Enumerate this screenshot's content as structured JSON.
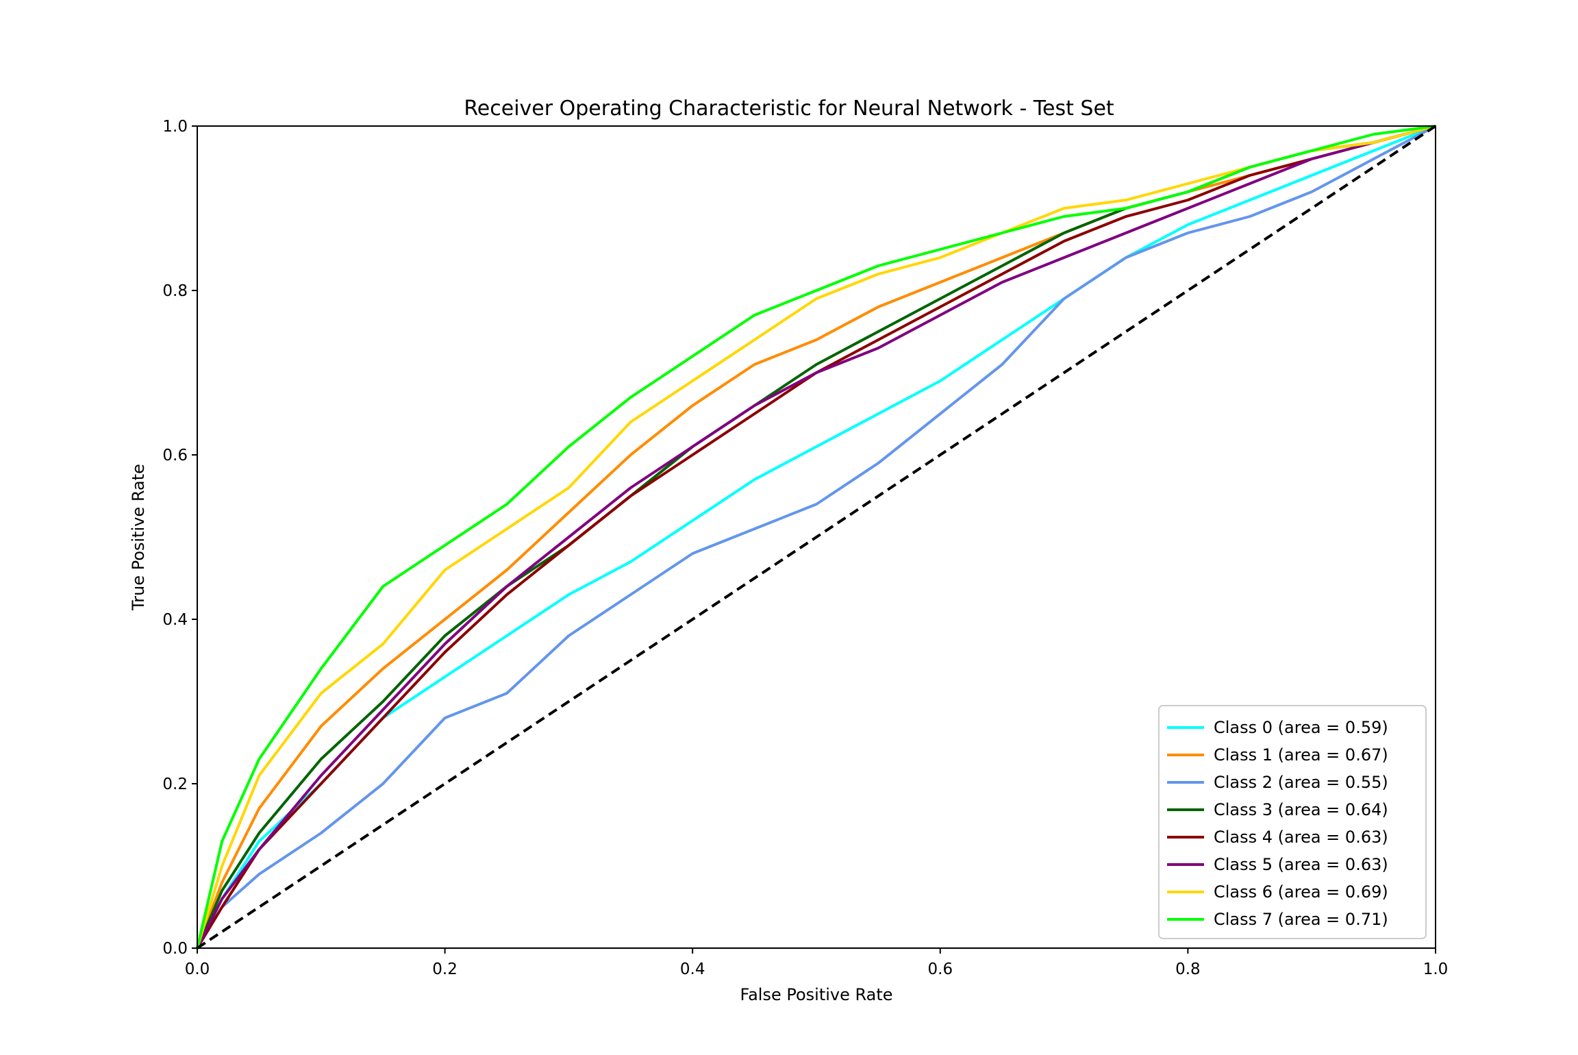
{
  "chart_data": {
    "type": "line",
    "title": "Receiver Operating Characteristic for Neural Network - Test Set",
    "xlabel": "False Positive Rate",
    "ylabel": "True Positive Rate",
    "xlim": [
      0.0,
      1.0
    ],
    "ylim": [
      0.0,
      1.0
    ],
    "xticks": [
      "0.0",
      "0.2",
      "0.4",
      "0.6",
      "0.8",
      "1.0"
    ],
    "yticks": [
      "0.0",
      "0.2",
      "0.4",
      "0.6",
      "0.8",
      "1.0"
    ],
    "grid": false,
    "legend_position": "lower-right",
    "series": [
      {
        "name": "Class 0 (area = 0.59)",
        "color": "#00ffff",
        "x": [
          0.0,
          0.02,
          0.05,
          0.1,
          0.15,
          0.2,
          0.25,
          0.3,
          0.35,
          0.4,
          0.45,
          0.5,
          0.55,
          0.6,
          0.65,
          0.7,
          0.75,
          0.8,
          0.85,
          0.9,
          0.95,
          1.0
        ],
        "y": [
          0.0,
          0.06,
          0.13,
          0.2,
          0.28,
          0.33,
          0.38,
          0.43,
          0.47,
          0.52,
          0.57,
          0.61,
          0.65,
          0.69,
          0.74,
          0.79,
          0.84,
          0.88,
          0.91,
          0.94,
          0.97,
          1.0
        ]
      },
      {
        "name": "Class 1 (area = 0.67)",
        "color": "#ff8c00",
        "x": [
          0.0,
          0.02,
          0.05,
          0.1,
          0.15,
          0.2,
          0.25,
          0.3,
          0.35,
          0.4,
          0.45,
          0.5,
          0.55,
          0.6,
          0.65,
          0.7,
          0.75,
          0.8,
          0.85,
          0.9,
          0.95,
          1.0
        ],
        "y": [
          0.0,
          0.08,
          0.17,
          0.27,
          0.34,
          0.4,
          0.46,
          0.53,
          0.6,
          0.66,
          0.71,
          0.74,
          0.78,
          0.81,
          0.84,
          0.87,
          0.9,
          0.92,
          0.94,
          0.96,
          0.98,
          1.0
        ]
      },
      {
        "name": "Class 2 (area = 0.55)",
        "color": "#6495ed",
        "x": [
          0.0,
          0.02,
          0.05,
          0.1,
          0.15,
          0.2,
          0.25,
          0.3,
          0.35,
          0.4,
          0.45,
          0.5,
          0.55,
          0.6,
          0.65,
          0.7,
          0.75,
          0.8,
          0.85,
          0.9,
          0.95,
          1.0
        ],
        "y": [
          0.0,
          0.05,
          0.09,
          0.14,
          0.2,
          0.28,
          0.31,
          0.38,
          0.43,
          0.48,
          0.51,
          0.54,
          0.59,
          0.65,
          0.71,
          0.79,
          0.84,
          0.87,
          0.89,
          0.92,
          0.96,
          1.0
        ]
      },
      {
        "name": "Class 3 (area = 0.64)",
        "color": "#006400",
        "x": [
          0.0,
          0.02,
          0.05,
          0.1,
          0.15,
          0.2,
          0.25,
          0.3,
          0.35,
          0.4,
          0.45,
          0.5,
          0.55,
          0.6,
          0.65,
          0.7,
          0.75,
          0.8,
          0.85,
          0.9,
          0.95,
          1.0
        ],
        "y": [
          0.0,
          0.07,
          0.14,
          0.23,
          0.3,
          0.38,
          0.44,
          0.49,
          0.55,
          0.61,
          0.66,
          0.71,
          0.75,
          0.79,
          0.83,
          0.87,
          0.9,
          0.92,
          0.95,
          0.97,
          0.98,
          1.0
        ]
      },
      {
        "name": "Class 4 (area = 0.63)",
        "color": "#8b0000",
        "x": [
          0.0,
          0.02,
          0.05,
          0.1,
          0.15,
          0.2,
          0.25,
          0.3,
          0.35,
          0.4,
          0.45,
          0.5,
          0.55,
          0.6,
          0.65,
          0.7,
          0.75,
          0.8,
          0.85,
          0.9,
          0.95,
          1.0
        ],
        "y": [
          0.0,
          0.05,
          0.12,
          0.2,
          0.28,
          0.36,
          0.43,
          0.49,
          0.55,
          0.6,
          0.65,
          0.7,
          0.74,
          0.78,
          0.82,
          0.86,
          0.89,
          0.91,
          0.94,
          0.96,
          0.98,
          1.0
        ]
      },
      {
        "name": "Class 5 (area = 0.63)",
        "color": "#800080",
        "x": [
          0.0,
          0.02,
          0.05,
          0.1,
          0.15,
          0.2,
          0.25,
          0.3,
          0.35,
          0.4,
          0.45,
          0.5,
          0.55,
          0.6,
          0.65,
          0.7,
          0.75,
          0.8,
          0.85,
          0.9,
          0.95,
          1.0
        ],
        "y": [
          0.0,
          0.06,
          0.12,
          0.21,
          0.29,
          0.37,
          0.44,
          0.5,
          0.56,
          0.61,
          0.66,
          0.7,
          0.73,
          0.77,
          0.81,
          0.84,
          0.87,
          0.9,
          0.93,
          0.96,
          0.98,
          1.0
        ]
      },
      {
        "name": "Class 6 (area = 0.69)",
        "color": "#ffd700",
        "x": [
          0.0,
          0.02,
          0.05,
          0.1,
          0.15,
          0.2,
          0.25,
          0.3,
          0.35,
          0.4,
          0.45,
          0.5,
          0.55,
          0.6,
          0.65,
          0.7,
          0.75,
          0.8,
          0.85,
          0.9,
          0.95,
          1.0
        ],
        "y": [
          0.0,
          0.1,
          0.21,
          0.31,
          0.37,
          0.46,
          0.51,
          0.56,
          0.64,
          0.69,
          0.74,
          0.79,
          0.82,
          0.84,
          0.87,
          0.9,
          0.91,
          0.93,
          0.95,
          0.97,
          0.98,
          1.0
        ]
      },
      {
        "name": "Class 7 (area = 0.71)",
        "color": "#00ff00",
        "x": [
          0.0,
          0.02,
          0.05,
          0.1,
          0.15,
          0.2,
          0.25,
          0.3,
          0.35,
          0.4,
          0.45,
          0.5,
          0.55,
          0.6,
          0.65,
          0.7,
          0.75,
          0.8,
          0.85,
          0.9,
          0.95,
          1.0
        ],
        "y": [
          0.0,
          0.13,
          0.23,
          0.34,
          0.44,
          0.49,
          0.54,
          0.61,
          0.67,
          0.72,
          0.77,
          0.8,
          0.83,
          0.85,
          0.87,
          0.89,
          0.9,
          0.92,
          0.95,
          0.97,
          0.99,
          1.0
        ]
      }
    ],
    "reference_line": {
      "color": "#000000",
      "style": "dashed",
      "x": [
        0.0,
        1.0
      ],
      "y": [
        0.0,
        1.0
      ]
    }
  }
}
